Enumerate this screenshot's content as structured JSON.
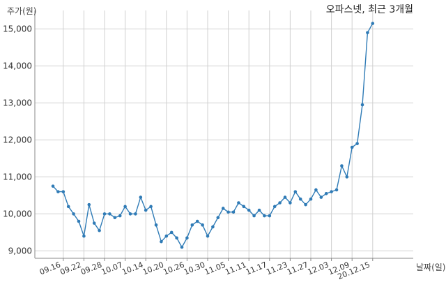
{
  "chart_data": {
    "type": "line",
    "title": "오파스넷, 최근 3개월",
    "xlabel": "날짜(일)",
    "ylabel": "주가(원)",
    "ylim": [
      8800,
      15500
    ],
    "yticks": [
      9000,
      10000,
      11000,
      12000,
      13000,
      14000,
      15000
    ],
    "ytick_labels": [
      "9,000",
      "10,000",
      "11,000",
      "12,000",
      "13,000",
      "14,000",
      "15,000"
    ],
    "xtick_labels": [
      "09.16",
      "09.22",
      "09.28",
      "10.07",
      "10.14",
      "10.20",
      "10.26",
      "10.30",
      "11.05",
      "11.11",
      "11.17",
      "11.23",
      "11.27",
      "12.03",
      "12.09",
      "20.12.15"
    ],
    "xtick_index": [
      2,
      6,
      10,
      14,
      18,
      22,
      26,
      30,
      34,
      38,
      42,
      46,
      50,
      54,
      58,
      62
    ],
    "grid": true,
    "color": "#2f7bb6",
    "series": [
      {
        "name": "",
        "values": [
          10750,
          10600,
          10600,
          10200,
          10000,
          9800,
          9400,
          10250,
          9750,
          9550,
          10000,
          10000,
          9900,
          9950,
          10200,
          10000,
          10000,
          10450,
          10100,
          10200,
          9700,
          9250,
          9400,
          9500,
          9350,
          9100,
          9350,
          9700,
          9800,
          9700,
          9400,
          9650,
          9900,
          10150,
          10050,
          10050,
          10300,
          10200,
          10100,
          9950,
          10100,
          9950,
          9950,
          10200,
          10300,
          10450,
          10300,
          10600,
          10400,
          10250,
          10400,
          10650,
          10450,
          10550,
          10600,
          10650,
          11300,
          11000,
          11800,
          11900,
          12950,
          14900,
          15150
        ]
      }
    ]
  }
}
